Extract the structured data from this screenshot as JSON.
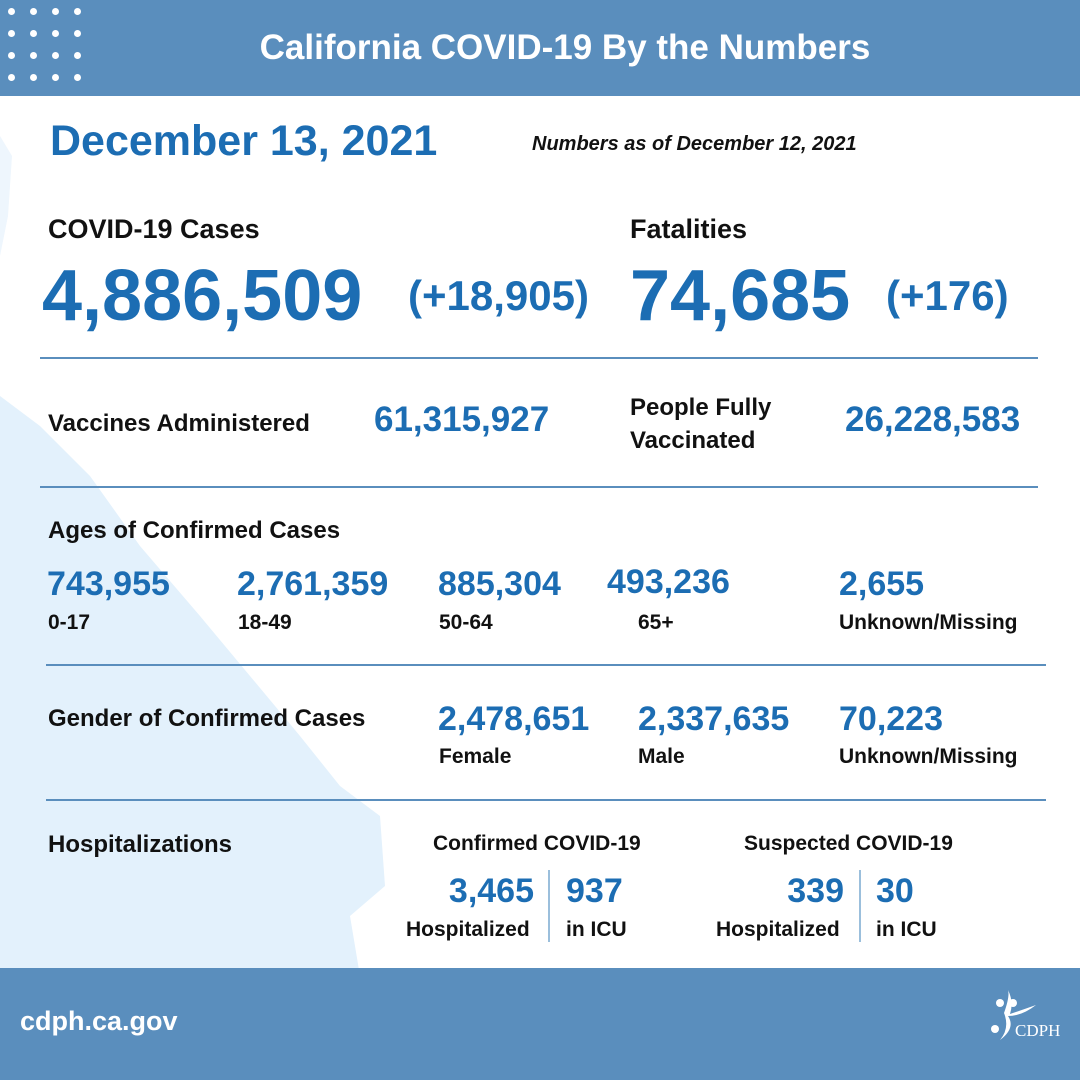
{
  "header": {
    "title": "California COVID-19 By the Numbers"
  },
  "date": "December 13, 2021",
  "as_of": "Numbers as of December 12, 2021",
  "cases": {
    "label": "COVID-19 Cases",
    "value": "4,886,509",
    "change": "(+18,905)"
  },
  "fatalities": {
    "label": "Fatalities",
    "value": "74,685",
    "change": "(+176)"
  },
  "vaccines": {
    "label": "Vaccines Administered",
    "value": "61,315,927"
  },
  "fully_vaccinated": {
    "label_line1": "People Fully",
    "label_line2": "Vaccinated",
    "value": "26,228,583"
  },
  "ages": {
    "title": "Ages of Confirmed Cases",
    "items": [
      {
        "value": "743,955",
        "label": "0-17"
      },
      {
        "value": "2,761,359",
        "label": "18-49"
      },
      {
        "value": "885,304",
        "label": "50-64"
      },
      {
        "value": "493,236",
        "label": "65+"
      },
      {
        "value": "2,655",
        "label": "Unknown/Missing"
      }
    ]
  },
  "gender": {
    "title": "Gender of Confirmed Cases",
    "items": [
      {
        "value": "2,478,651",
        "label": "Female"
      },
      {
        "value": "2,337,635",
        "label": "Male"
      },
      {
        "value": "70,223",
        "label": "Unknown/Missing"
      }
    ]
  },
  "hospitalizations": {
    "title": "Hospitalizations",
    "confirmed": {
      "title": "Confirmed COVID-19",
      "hospitalized": "3,465",
      "hospitalized_label": "Hospitalized",
      "icu": "937",
      "icu_label": "in ICU"
    },
    "suspected": {
      "title": "Suspected COVID-19",
      "hospitalized": "339",
      "hospitalized_label": "Hospitalized",
      "icu": "30",
      "icu_label": "in ICU"
    }
  },
  "footer": {
    "url": "cdph.ca.gov",
    "logo_text": "CDPH"
  },
  "colors": {
    "header": "#5a8ebd",
    "accent": "#1c6db3",
    "map": "#e3f1fc"
  }
}
